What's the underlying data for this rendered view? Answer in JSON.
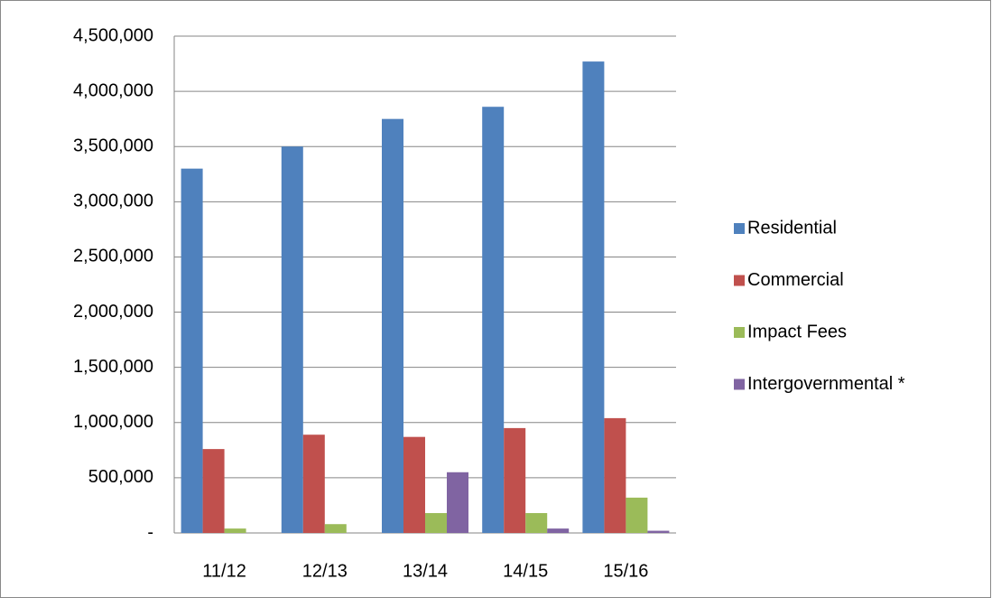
{
  "chart_data": {
    "type": "bar",
    "categories": [
      "11/12",
      "12/13",
      "13/14",
      "14/15",
      "15/16"
    ],
    "series": [
      {
        "name": "Residential",
        "color": "#4f81bd",
        "values": [
          3300000,
          3500000,
          3750000,
          3860000,
          4270000
        ]
      },
      {
        "name": "Commercial",
        "color": "#c0504d",
        "values": [
          760000,
          890000,
          870000,
          950000,
          1040000
        ]
      },
      {
        "name": "Impact Fees",
        "color": "#9bbb59",
        "values": [
          40000,
          80000,
          180000,
          180000,
          320000
        ]
      },
      {
        "name": "Intergovernmental *",
        "color": "#8064a2",
        "values": [
          0,
          0,
          550000,
          40000,
          20000
        ]
      }
    ],
    "ylim": [
      0,
      4500000
    ],
    "yticks": [
      {
        "value": 0,
        "label": "-"
      },
      {
        "value": 500000,
        "label": "500,000"
      },
      {
        "value": 1000000,
        "label": "1,000,000"
      },
      {
        "value": 1500000,
        "label": "1,500,000"
      },
      {
        "value": 2000000,
        "label": "2,000,000"
      },
      {
        "value": 2500000,
        "label": "2,500,000"
      },
      {
        "value": 3000000,
        "label": "3,000,000"
      },
      {
        "value": 3500000,
        "label": "3,500,000"
      },
      {
        "value": 4000000,
        "label": "4,000,000"
      },
      {
        "value": 4500000,
        "label": "4,500,000"
      }
    ],
    "grid": true,
    "legend": "right"
  }
}
